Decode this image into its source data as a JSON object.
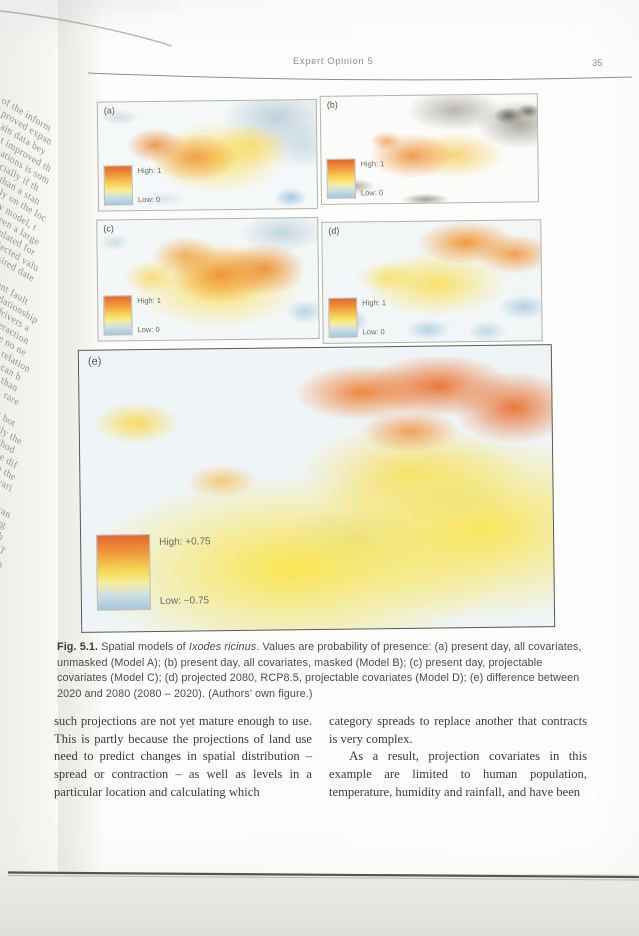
{
  "header": {
    "running_title": "Expert Opinion 5",
    "page_number": "35"
  },
  "figure": {
    "panels": [
      {
        "id": "a",
        "label": "(a)",
        "legend_high": "High: 1",
        "legend_low": "Low: 0"
      },
      {
        "id": "b",
        "label": "(b)",
        "legend_high": "High: 1",
        "legend_low": "Low: 0"
      },
      {
        "id": "c",
        "label": "(c)",
        "legend_high": "High: 1",
        "legend_low": "Low: 0"
      },
      {
        "id": "d",
        "label": "(d)",
        "legend_high": "High: 1",
        "legend_low": "Low: 0"
      },
      {
        "id": "e",
        "label": "(e)",
        "legend_high": "High: +0.75",
        "legend_low": "Low: −0.75"
      }
    ],
    "caption": {
      "fig_label": "Fig. 5.1.",
      "intro": " Spatial models of ",
      "species": "Ixodes ricinus",
      "rest": ". Values are probability of presence: (a) present day, all covariates, unmasked (Model A); (b) present day, all covariates, masked (Model B); (c) present day, projectable covariates (Model C); (d) projected 2080, RCP8.5, projectable covariates (Model D); (e) difference between 2020 and 2080 (2080 – 2020). (Authors’ own figure.)"
    }
  },
  "body": {
    "left_column": "such projections are not yet mature enough to use. This is partly because the projections of land use need to predict changes in spatial distribution – spread or contraction – as well as levels in a particular location and calculating which",
    "right_p1": "category spreads to replace another that contracts is very complex.",
    "right_p2": "As a result, projection covariates in this example are limited to human population, temperature, humidity and rainfall, and have been"
  },
  "adjacent_page_fragments": [
    "of the inform",
    "proved expan",
    "ain data bey",
    "t improved th",
    "ations is som",
    "cially if th",
    "than a stan",
    "ly on the loc",
    "y model, t",
    "een a large",
    "ulated for",
    "jected valu",
    "sired date",
    "ent fault",
    "elationship",
    "drivers a",
    "teraction",
    "re no ne",
    "r relation",
    "s can b",
    "e than",
    "g, rare",
    "at bot",
    "ctly the",
    "ethod",
    "the dif",
    "en the",
    "ovari",
    "es",
    "r can",
    "hog",
    "gth",
    "e. T",
    "ons"
  ],
  "colors": {
    "map_orange": "#f0953c",
    "map_deep_orange": "#e4672f",
    "map_yellow": "#f6d858",
    "map_blue": "#a5c6de",
    "map_mask_gray": "#a8a49c",
    "page_white": "#fcfcfa",
    "desk_gray": "#e6e6e2"
  }
}
